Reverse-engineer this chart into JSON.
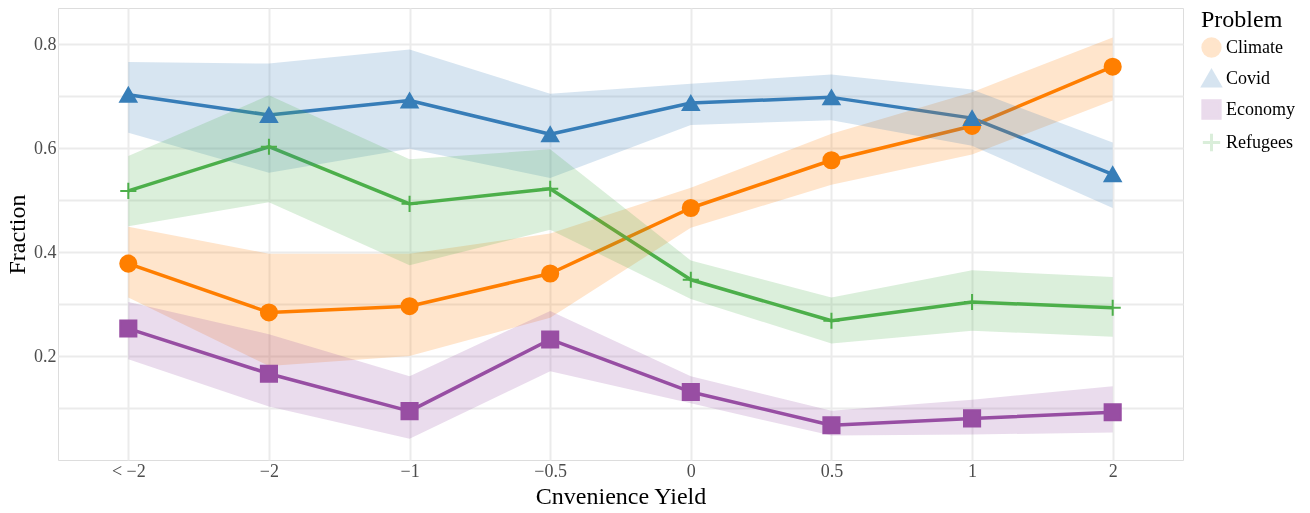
{
  "chart_data": {
    "type": "line",
    "xlabel": "Cnvenience Yield",
    "ylabel": "Fraction",
    "legend_title": "Problem",
    "categories": [
      "< −2",
      "−2",
      "−1",
      "−0.5",
      "0",
      "0.5",
      "1",
      "2"
    ],
    "ylim": [
      0,
      0.87
    ],
    "yticks": [
      {
        "value": 0.1,
        "label": null
      },
      0.2,
      {
        "value": 0.3,
        "label": null
      },
      0.4,
      {
        "value": 0.5,
        "label": null
      },
      0.6,
      {
        "value": 0.7,
        "label": null
      },
      0.8
    ],
    "grid": true,
    "legend": "right",
    "series": [
      {
        "name": "Climate",
        "color": "#ff7f00",
        "marker": "circle",
        "values": [
          0.378,
          0.284,
          0.296,
          0.359,
          0.485,
          0.577,
          0.643,
          0.757
        ],
        "lower": [
          0.313,
          0.181,
          0.2,
          0.274,
          0.447,
          0.53,
          0.588,
          0.692
        ],
        "upper": [
          0.449,
          0.397,
          0.397,
          0.436,
          0.524,
          0.628,
          0.708,
          0.813
        ]
      },
      {
        "name": "Covid",
        "color": "#377eb8",
        "marker": "triangle",
        "values": [
          0.703,
          0.664,
          0.692,
          0.627,
          0.687,
          0.698,
          0.658,
          0.55
        ],
        "lower": [
          0.63,
          0.553,
          0.599,
          0.543,
          0.645,
          0.654,
          0.605,
          0.485
        ],
        "upper": [
          0.766,
          0.763,
          0.79,
          0.705,
          0.724,
          0.742,
          0.713,
          0.611
        ]
      },
      {
        "name": "Economy",
        "color": "#984ea3",
        "marker": "square",
        "values": [
          0.253,
          0.166,
          0.094,
          0.232,
          0.131,
          0.067,
          0.08,
          0.092
        ],
        "lower": [
          0.194,
          0.103,
          0.041,
          0.171,
          0.109,
          0.047,
          0.049,
          0.053
        ],
        "upper": [
          0.304,
          0.242,
          0.161,
          0.287,
          0.161,
          0.095,
          0.116,
          0.142
        ]
      },
      {
        "name": "Refugees",
        "color": "#4daf4a",
        "marker": "cross",
        "values": [
          0.518,
          0.603,
          0.493,
          0.522,
          0.347,
          0.268,
          0.304,
          0.293
        ],
        "lower": [
          0.45,
          0.496,
          0.375,
          0.443,
          0.31,
          0.224,
          0.249,
          0.237
        ],
        "upper": [
          0.585,
          0.702,
          0.579,
          0.598,
          0.384,
          0.313,
          0.365,
          0.352
        ]
      }
    ]
  }
}
